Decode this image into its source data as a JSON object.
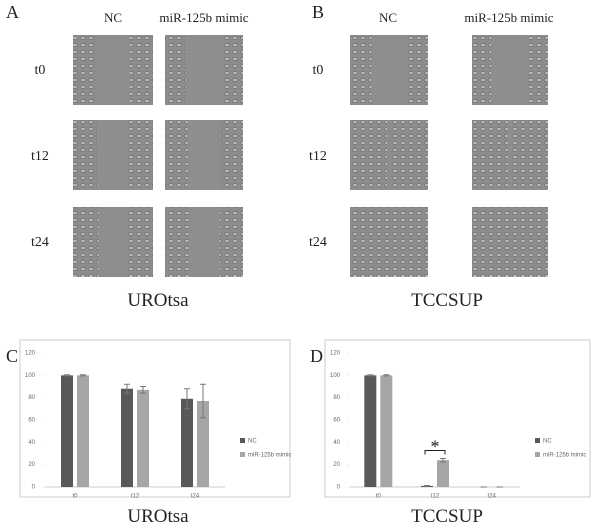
{
  "figure": {
    "panels": [
      "A",
      "B",
      "C",
      "D"
    ],
    "columns": [
      "NC",
      "miR-125b mimic"
    ],
    "rows": [
      "t0",
      "t12",
      "t24"
    ],
    "cell_lines": [
      "UROtsa",
      "TCCSUP"
    ]
  },
  "chart_data": [
    {
      "type": "bar",
      "categories": [
        "t0",
        "t12",
        "t24"
      ],
      "ylim": [
        0,
        120
      ],
      "yticks": [
        0,
        20,
        40,
        60,
        80,
        100,
        120
      ],
      "series": [
        {
          "name": "NC",
          "color": "#595959",
          "values": [
            100,
            88,
            79
          ],
          "errors": [
            0.5,
            4,
            9
          ]
        },
        {
          "name": "miR-125b mimic",
          "color": "#a6a6a6",
          "values": [
            100,
            87,
            77
          ],
          "errors": [
            0.5,
            3,
            15
          ]
        }
      ]
    },
    {
      "type": "bar",
      "categories": [
        "t0",
        "t12",
        "t24"
      ],
      "ylim": [
        0,
        120
      ],
      "yticks": [
        0,
        20,
        40,
        60,
        80,
        100,
        120
      ],
      "annotation": "*",
      "series": [
        {
          "name": "NC",
          "color": "#595959",
          "values": [
            100,
            1,
            0
          ],
          "errors": [
            0.5,
            0.3,
            0
          ]
        },
        {
          "name": "miR-125b mimic",
          "color": "#a6a6a6",
          "values": [
            100,
            24,
            0
          ],
          "errors": [
            0.5,
            1.5,
            0
          ]
        }
      ]
    }
  ]
}
